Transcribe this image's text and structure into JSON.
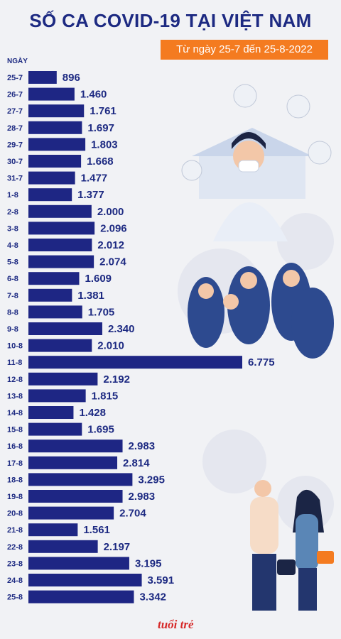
{
  "header": {
    "title": "SỐ CA COVID-19 TẠI VIỆT NAM",
    "subtitle": "Từ ngày 25-7 đến 25-8-2022"
  },
  "logo": {
    "text": "tuổi trẻ"
  },
  "colors": {
    "bar": "#1e2684",
    "text": "#1d2a82",
    "accent": "#f47b20",
    "background": "#f1f2f5"
  },
  "chart_data": {
    "type": "bar",
    "orientation": "horizontal",
    "ylabel": "NGÀY",
    "categories": [
      "25-7",
      "26-7",
      "27-7",
      "28-7",
      "29-7",
      "30-7",
      "31-7",
      "1-8",
      "2-8",
      "3-8",
      "4-8",
      "5-8",
      "6-8",
      "7-8",
      "8-8",
      "9-8",
      "10-8",
      "11-8",
      "12-8",
      "13-8",
      "14-8",
      "15-8",
      "16-8",
      "17-8",
      "18-8",
      "19-8",
      "20-8",
      "21-8",
      "22-8",
      "23-8",
      "24-8",
      "25-8"
    ],
    "values": [
      896,
      1460,
      1761,
      1697,
      1803,
      1668,
      1477,
      1377,
      2000,
      2096,
      2012,
      2074,
      1609,
      1381,
      1705,
      2340,
      2010,
      6775,
      2192,
      1815,
      1428,
      1695,
      2983,
      2814,
      3295,
      2983,
      2704,
      1561,
      2197,
      3195,
      3591,
      3342
    ],
    "labels": [
      "896",
      "1.460",
      "1.761",
      "1.697",
      "1.803",
      "1.668",
      "1.477",
      "1.377",
      "2.000",
      "2.096",
      "2.012",
      "2.074",
      "1.609",
      "1.381",
      "1.705",
      "2.340",
      "2.010",
      "6.775",
      "2.192",
      "1.815",
      "1.428",
      "1.695",
      "2.983",
      "2.814",
      "3.295",
      "2.983",
      "2.704",
      "1.561",
      "2.197",
      "3.195",
      "3.591",
      "3.342"
    ],
    "grid": false,
    "legend": "none"
  }
}
